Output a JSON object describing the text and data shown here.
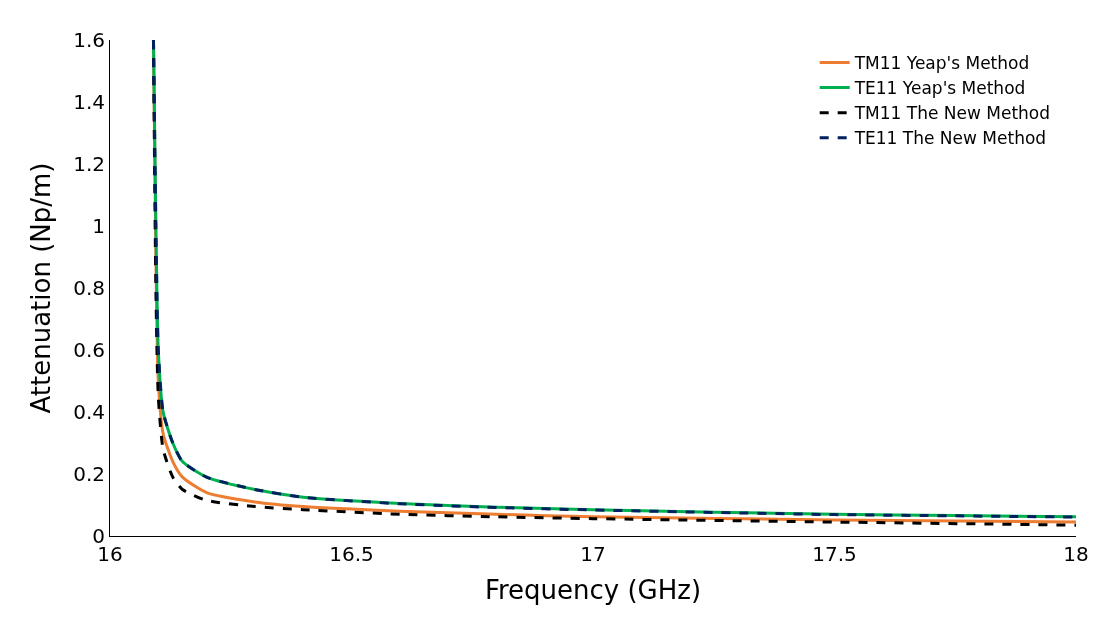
{
  "chart_data": {
    "type": "line",
    "xlabel": "Frequency (GHz)",
    "ylabel": "Attenuation (Np/m)",
    "xlim": [
      16,
      18
    ],
    "xticks": [
      16,
      16.5,
      17,
      17.5,
      18
    ],
    "ylim": [
      0,
      1.6
    ],
    "yticks": [
      0,
      0.2,
      0.4,
      0.6,
      0.8,
      1,
      1.2,
      1.4,
      1.6
    ],
    "legend": "top right",
    "marker": "none",
    "series": [
      {
        "name": "TM11 Yeap's Method",
        "color": "#ed7d31",
        "line_style": "solid",
        "x": [
          16.09,
          16.095,
          16.1,
          16.11,
          16.13,
          16.15,
          16.2,
          16.3,
          16.4,
          16.6,
          16.8,
          17,
          17.5,
          18
        ],
        "values": [
          1.6,
          0.9,
          0.5,
          0.33,
          0.24,
          0.19,
          0.14,
          0.11,
          0.095,
          0.08,
          0.07,
          0.062,
          0.052,
          0.045
        ]
      },
      {
        "name": "TE11 Yeap's Method",
        "color": "#00b050",
        "line_style": "solid",
        "x": [
          16.09,
          16.095,
          16.1,
          16.11,
          16.13,
          16.15,
          16.2,
          16.3,
          16.4,
          16.6,
          16.8,
          17,
          17.25,
          17.5,
          17.75,
          18
        ],
        "values": [
          1.6,
          1.0,
          0.6,
          0.4,
          0.3,
          0.24,
          0.19,
          0.15,
          0.125,
          0.105,
          0.093,
          0.085,
          0.077,
          0.07,
          0.066,
          0.062
        ]
      },
      {
        "name": "TM11 The New Method",
        "color": "#000000",
        "line_style": "dashed",
        "x": [
          16.09,
          16.095,
          16.1,
          16.11,
          16.13,
          16.15,
          16.2,
          16.3,
          16.4,
          16.6,
          16.8,
          17,
          17.5,
          18
        ],
        "values": [
          1.6,
          0.8,
          0.45,
          0.28,
          0.19,
          0.15,
          0.115,
          0.095,
          0.085,
          0.07,
          0.062,
          0.056,
          0.045,
          0.035
        ]
      },
      {
        "name": "TE11 The New Method",
        "color": "#002060",
        "line_style": "dashed",
        "x": [
          16.09,
          16.095,
          16.1,
          16.11,
          16.13,
          16.15,
          16.2,
          16.3,
          16.4,
          16.6,
          16.8,
          17,
          17.25,
          17.5,
          17.75,
          18
        ],
        "values": [
          1.6,
          1.0,
          0.6,
          0.4,
          0.3,
          0.24,
          0.19,
          0.15,
          0.125,
          0.104,
          0.092,
          0.084,
          0.076,
          0.069,
          0.065,
          0.061
        ]
      }
    ]
  }
}
